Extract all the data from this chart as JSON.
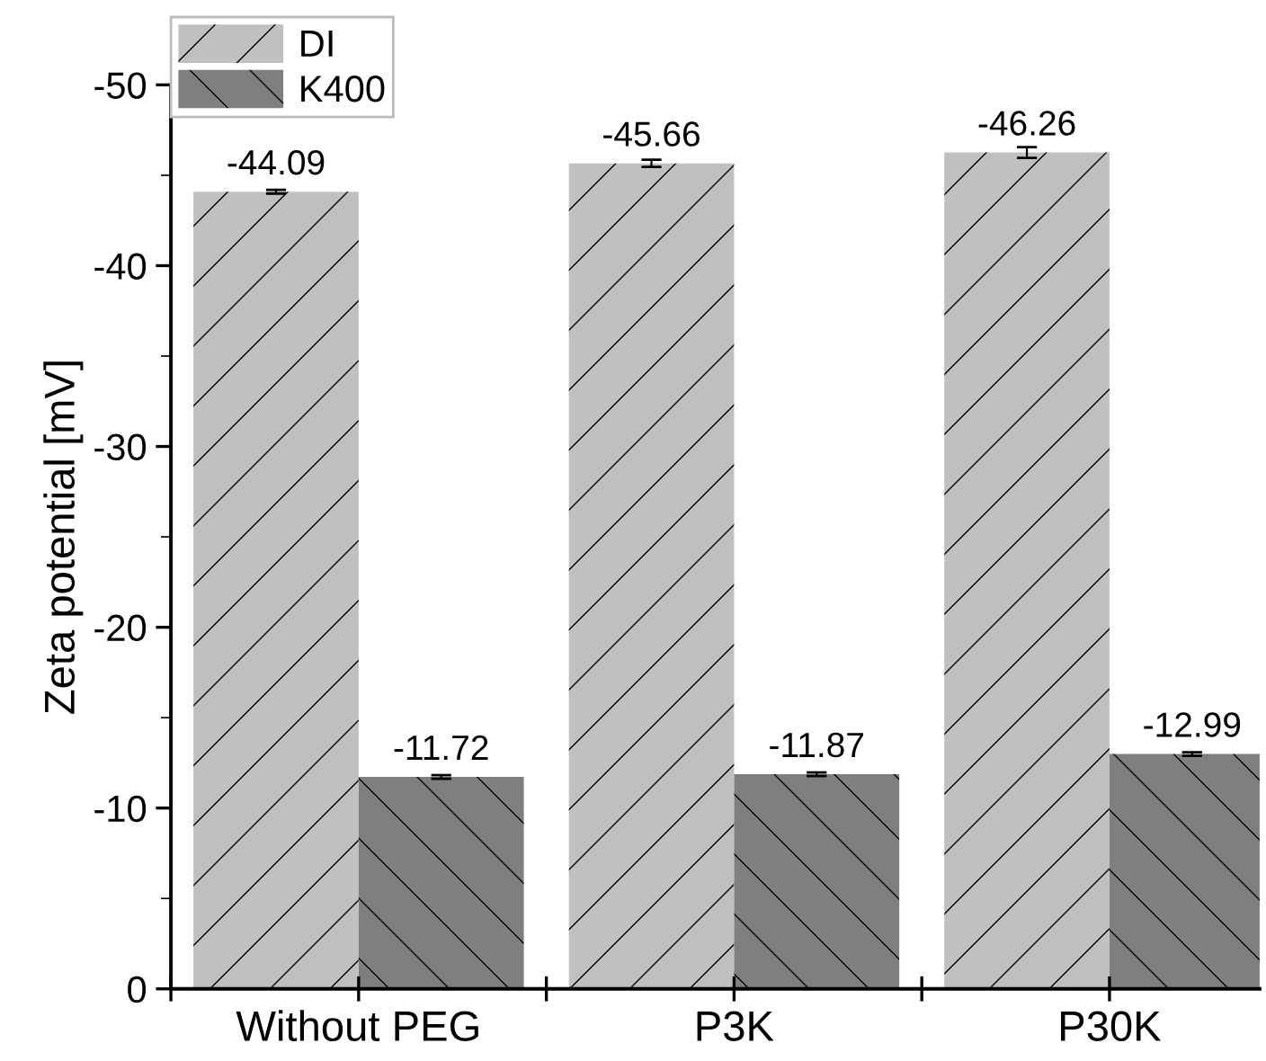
{
  "chart_data": {
    "type": "bar",
    "ylabel": "Zeta potential [mV]",
    "categories": [
      "Without PEG",
      "P3K",
      "P30K"
    ],
    "series": [
      {
        "name": "DI",
        "color": "#c0c0c0",
        "values": [
          -44.09,
          -45.66,
          -46.26
        ],
        "errors": [
          0.1,
          0.2,
          0.3
        ]
      },
      {
        "name": "K400",
        "color": "#7f7f7f",
        "values": [
          -11.72,
          -11.87,
          -12.99
        ],
        "errors": [
          0.1,
          0.1,
          0.1
        ]
      }
    ],
    "ylim": [
      0,
      -50
    ],
    "yticks": [
      0,
      -10,
      -20,
      -30,
      -40,
      -50
    ],
    "data_labels": true,
    "grid": false,
    "legend": "top left"
  }
}
